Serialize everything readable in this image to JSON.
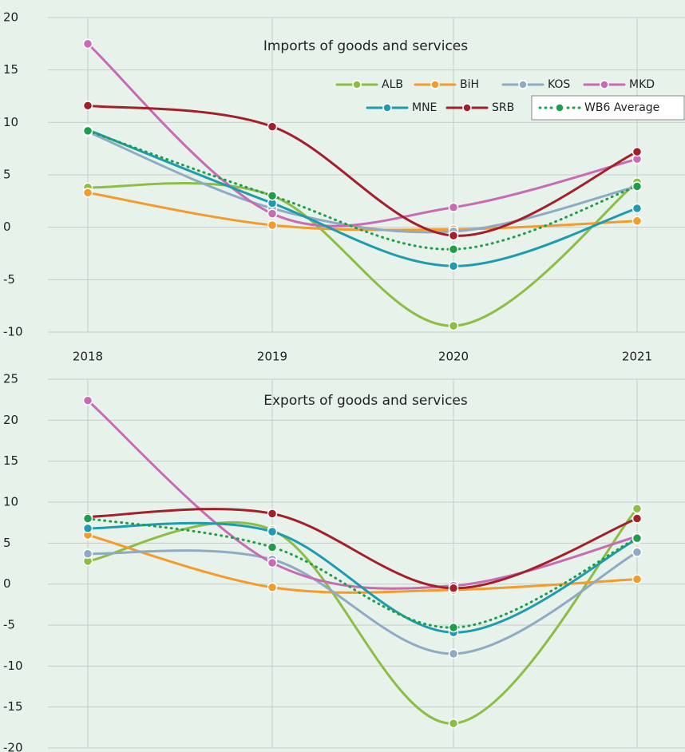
{
  "chart_data": [
    {
      "type": "line",
      "title": "Imports of goods and services",
      "categories": [
        "2018",
        "2019",
        "2020",
        "2021"
      ],
      "ylim": [
        -10,
        20
      ],
      "yticks": [
        -10,
        -5,
        0,
        5,
        10,
        15,
        20
      ],
      "grid": true,
      "legend": "upper right",
      "series": [
        {
          "name": "ALB",
          "color": "#8cbd45",
          "values": [
            3.8,
            3.0,
            -9.4,
            4.3
          ]
        },
        {
          "name": "BiH",
          "color": "#f39c2b",
          "values": [
            3.3,
            0.2,
            -0.2,
            0.6
          ]
        },
        {
          "name": "KOS",
          "color": "#8fabc3",
          "values": [
            9.1,
            1.8,
            -0.4,
            3.9
          ]
        },
        {
          "name": "MKD",
          "color": "#c86bb5",
          "values": [
            17.5,
            1.3,
            1.9,
            6.5
          ]
        },
        {
          "name": "MNE",
          "color": "#1f9bb0",
          "values": [
            9.3,
            2.3,
            -3.7,
            1.8
          ]
        },
        {
          "name": "SRB",
          "color": "#a3202a",
          "values": [
            11.6,
            9.6,
            -0.8,
            7.2
          ]
        },
        {
          "name": "WB6 Average",
          "color": "#1e9e4a",
          "dotted": true,
          "values": [
            9.2,
            3.0,
            -2.1,
            3.9
          ]
        }
      ]
    },
    {
      "type": "line",
      "title": "Exports of goods and services",
      "ylim": [
        -20,
        25
      ],
      "yticks": [
        -20,
        -15,
        -10,
        -5,
        0,
        5,
        10,
        15,
        20,
        25
      ],
      "grid": true,
      "series": [
        {
          "name": "ALB",
          "color": "#8cbd45",
          "values": [
            2.8,
            6.6,
            -17.0,
            9.2
          ]
        },
        {
          "name": "BiH",
          "color": "#f39c2b",
          "values": [
            6.0,
            -0.4,
            -0.7,
            0.6
          ]
        },
        {
          "name": "KOS",
          "color": "#8fabc3",
          "values": [
            3.7,
            3.0,
            -8.5,
            3.9
          ]
        },
        {
          "name": "MKD",
          "color": "#c86bb5",
          "values": [
            22.4,
            2.6,
            -0.2,
            5.8
          ]
        },
        {
          "name": "MNE",
          "color": "#1f9bb0",
          "values": [
            6.8,
            6.4,
            -5.9,
            5.5
          ]
        },
        {
          "name": "SRB",
          "color": "#a3202a",
          "values": [
            8.2,
            8.6,
            -0.5,
            8.0
          ]
        },
        {
          "name": "WB6 Average",
          "color": "#1e9e4a",
          "dotted": true,
          "values": [
            8.0,
            4.5,
            -5.3,
            5.6
          ]
        }
      ]
    }
  ]
}
